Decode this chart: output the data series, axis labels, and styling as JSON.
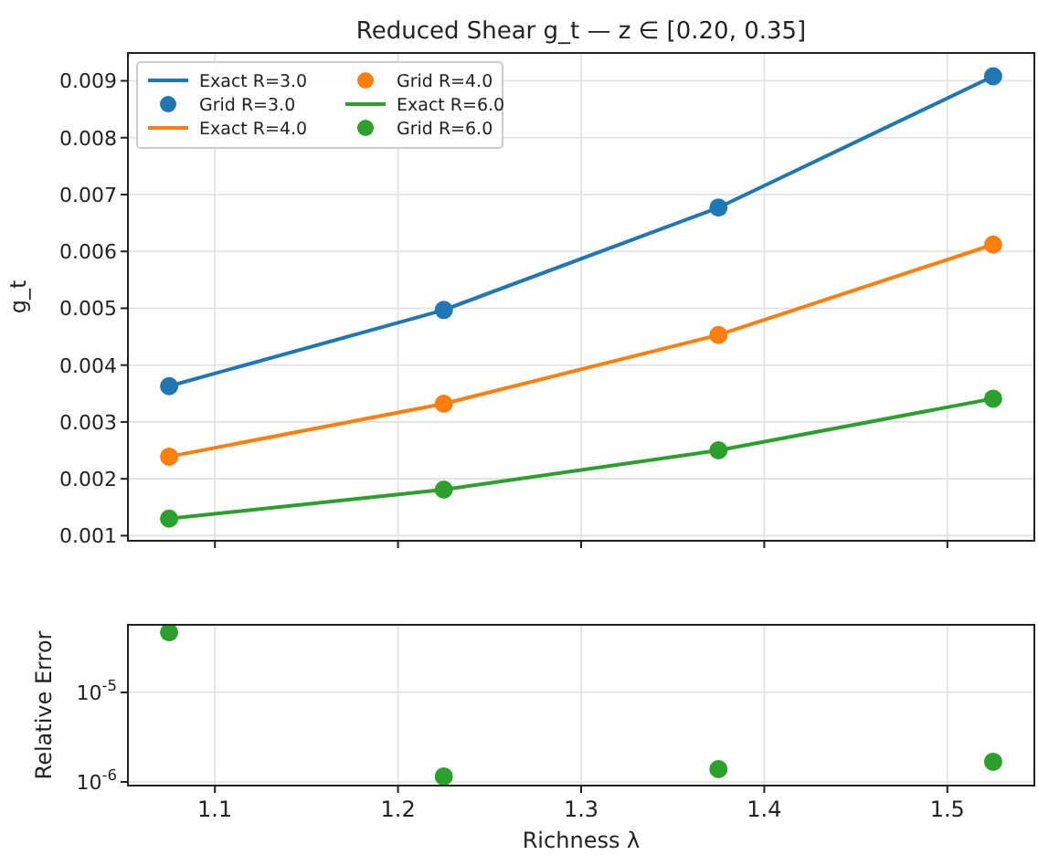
{
  "chart_data": [
    {
      "type": "line",
      "title": "Reduced Shear g_t — z ∈ [0.20, 0.35]",
      "ylabel": "g_t",
      "x": [
        1.075,
        1.225,
        1.375,
        1.525
      ],
      "xlim": [
        1.0525,
        1.5475
      ],
      "xticks": [
        1.1,
        1.2,
        1.3,
        1.4,
        1.5
      ],
      "ylim": [
        0.00091,
        0.00949
      ],
      "yticks": [
        0.001,
        0.002,
        0.003,
        0.004,
        0.005,
        0.006,
        0.007,
        0.008,
        0.009
      ],
      "tick_labels": "y",
      "grid": true,
      "legend": "top left",
      "series": [
        {
          "name": "Exact R=3.0",
          "color": "#1f77b4",
          "values": [
            0.00363,
            0.00497,
            0.00677,
            0.00908
          ]
        },
        {
          "name": "Grid R=3.0",
          "type": "scatter",
          "marker": "circle",
          "color": "#1f77b4",
          "values": [
            0.00363,
            0.00497,
            0.00677,
            0.00908
          ]
        },
        {
          "name": "Exact R=4.0",
          "color": "#ff7f0e",
          "values": [
            0.00239,
            0.00332,
            0.00453,
            0.00612
          ]
        },
        {
          "name": "Grid R=4.0",
          "type": "scatter",
          "marker": "circle",
          "color": "#ff7f0e",
          "values": [
            0.00239,
            0.00332,
            0.00453,
            0.00612
          ]
        },
        {
          "name": "Exact R=6.0",
          "color": "#2ca02c",
          "values": [
            0.0013,
            0.00181,
            0.0025,
            0.00341
          ]
        },
        {
          "name": "Grid R=6.0",
          "type": "scatter",
          "marker": "circle",
          "color": "#2ca02c",
          "values": [
            0.0013,
            0.00181,
            0.0025,
            0.00341
          ]
        }
      ]
    },
    {
      "type": "scatter",
      "xlabel": "Richness λ",
      "ylabel": "Relative Error",
      "x": [
        1.075,
        1.225,
        1.375,
        1.525
      ],
      "xlim": [
        1.0525,
        1.5475
      ],
      "xticks": [
        1.1,
        1.2,
        1.3,
        1.4,
        1.5
      ],
      "log": "y",
      "ylim": [
        9.1e-07,
        5.7e-05
      ],
      "yticks": [
        {
          "value": 1e-06,
          "label": "10$^{-6}$"
        },
        {
          "value": 1e-05,
          "label": "10$^{-5}$"
        }
      ],
      "grid": true,
      "series": [
        {
          "color": "#2ca02c",
          "marker": "circle",
          "values": [
            4.7e-05,
            1.15e-06,
            1.39e-06,
            1.68e-06
          ]
        }
      ]
    }
  ]
}
